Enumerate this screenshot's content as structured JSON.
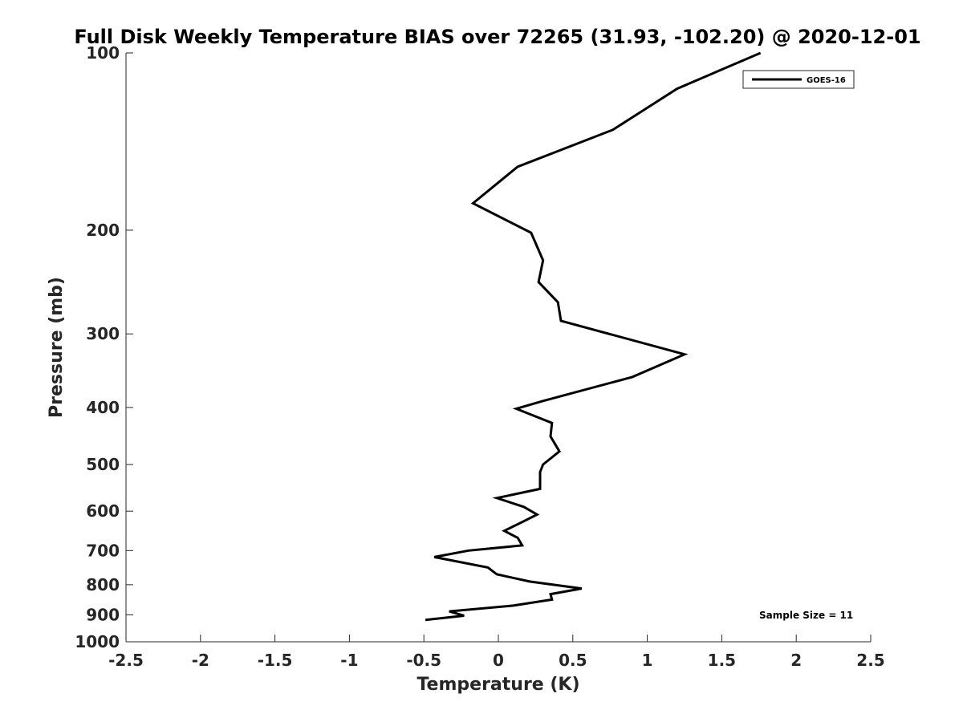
{
  "chart_data": {
    "type": "line",
    "title": "Full Disk Weekly Temperature BIAS over 72265 (31.93, -102.20) @ 2020-12-01",
    "xlabel": "Temperature (K)",
    "ylabel": "Pressure (mb)",
    "xlim": [
      -2.5,
      2.5
    ],
    "ylim": [
      100,
      1000
    ],
    "y_scale": "log",
    "y_reversed": true,
    "x_ticks": [
      "-2.5",
      "-2",
      "-1.5",
      "-1",
      "-0.5",
      "0",
      "0.5",
      "1",
      "1.5",
      "2",
      "2.5"
    ],
    "x_tick_values": [
      -2.5,
      -2,
      -1.5,
      -1,
      -0.5,
      0,
      0.5,
      1,
      1.5,
      2,
      2.5
    ],
    "y_ticks": [
      "100",
      "200",
      "300",
      "400",
      "500",
      "600",
      "700",
      "800",
      "900",
      "1000"
    ],
    "y_tick_values": [
      100,
      200,
      300,
      400,
      500,
      600,
      700,
      800,
      900,
      1000
    ],
    "grid": false,
    "legend_position": "top-right",
    "annotation": "Sample Size = 11",
    "series": [
      {
        "name": "GOES-16",
        "color": "#000000",
        "points": [
          [
            1.76,
            100
          ],
          [
            1.2,
            115
          ],
          [
            0.77,
            135
          ],
          [
            0.13,
            156
          ],
          [
            -0.17,
            180
          ],
          [
            0.22,
            202
          ],
          [
            0.3,
            225
          ],
          [
            0.27,
            245
          ],
          [
            0.4,
            265
          ],
          [
            0.42,
            285
          ],
          [
            1.25,
            325
          ],
          [
            0.9,
            355
          ],
          [
            0.3,
            390
          ],
          [
            0.12,
            402
          ],
          [
            0.36,
            425
          ],
          [
            0.35,
            448
          ],
          [
            0.41,
            475
          ],
          [
            0.3,
            500
          ],
          [
            0.28,
            515
          ],
          [
            0.28,
            550
          ],
          [
            -0.01,
            570
          ],
          [
            0.17,
            590
          ],
          [
            0.26,
            608
          ],
          [
            0.15,
            628
          ],
          [
            0.04,
            648
          ],
          [
            0.13,
            666
          ],
          [
            0.16,
            686
          ],
          [
            -0.2,
            700
          ],
          [
            -0.43,
            718
          ],
          [
            -0.07,
            748
          ],
          [
            -0.01,
            768
          ],
          [
            0.21,
            790
          ],
          [
            0.56,
            812
          ],
          [
            0.35,
            830
          ],
          [
            0.36,
            848
          ],
          [
            0.1,
            868
          ],
          [
            -0.33,
            888
          ],
          [
            -0.23,
            903
          ],
          [
            -0.49,
            918
          ]
        ]
      }
    ]
  }
}
